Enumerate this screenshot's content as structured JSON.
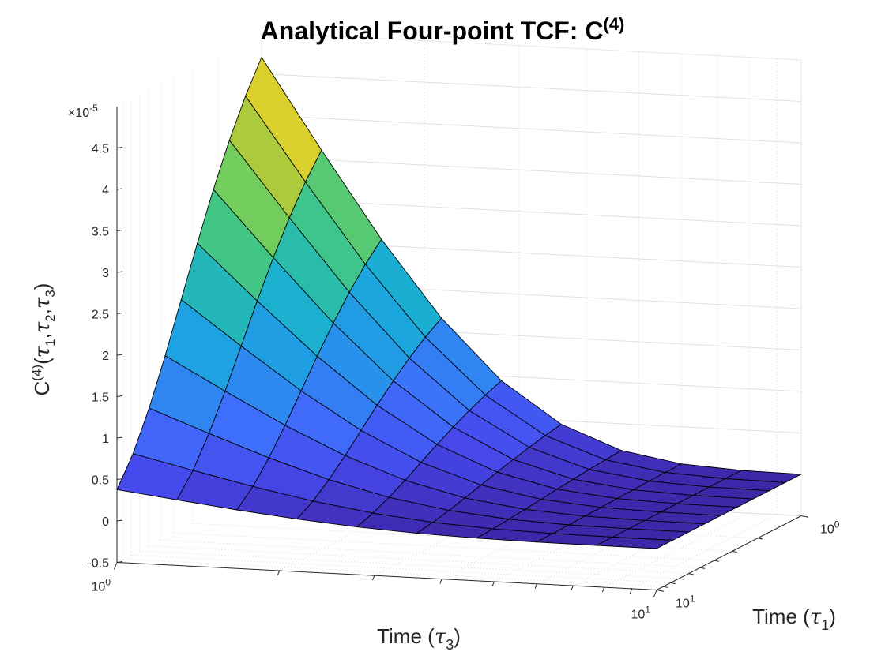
{
  "chart_data": {
    "type": "surface",
    "title": "Analytical Four-point TCF: C",
    "title_superscript": "(4)",
    "zlabel": {
      "base": "C",
      "sup": "(4)",
      "open": "(",
      "t1": "τ",
      "t1_sub": "1",
      "sep1": ",",
      "t2": "τ",
      "t2_sub": "2",
      "sep2": ",",
      "t3": "τ",
      "t3_sub": "3",
      "close": ")"
    },
    "xlabel": {
      "prefix": "Time (",
      "symbol": "τ",
      "sub": "3",
      "suffix": ")"
    },
    "ylabel": {
      "prefix": "Time (",
      "symbol": "τ",
      "sub": "1",
      "suffix": ")"
    },
    "z_exponent": {
      "prefix": "×10",
      "sup": "-5"
    },
    "z_ticks": [
      "-0.5",
      "0",
      "0.5",
      "1",
      "1.5",
      "2",
      "2.5",
      "3",
      "3.5",
      "4",
      "4.5"
    ],
    "z_tick_values": [
      -0.5,
      0,
      0.5,
      1,
      1.5,
      2,
      2.5,
      3,
      3.5,
      4,
      4.5
    ],
    "z_scale": 1e-05,
    "zlim": [
      -0.5,
      5.0
    ],
    "x_axis": {
      "scale": "log",
      "lim": [
        1,
        10
      ],
      "ticks": [
        {
          "base": "10",
          "sup": "0"
        },
        {
          "base": "10",
          "sup": "1"
        }
      ]
    },
    "y_axis": {
      "scale": "log",
      "lim": [
        1,
        10
      ],
      "ticks": [
        {
          "base": "10",
          "sup": "0"
        },
        {
          "base": "10",
          "sup": "1"
        }
      ]
    },
    "grid": true,
    "colormap": "parula",
    "tau3": [
      1,
      1.2915,
      1.6681,
      2.1544,
      2.7826,
      3.5938,
      4.6416,
      5.9948,
      7.7426,
      10
    ],
    "tau1": [
      1,
      1.2915,
      1.6681,
      2.1544,
      2.7826,
      3.5938,
      4.6416,
      5.9948,
      7.7426,
      10
    ],
    "z_peak": 4.7,
    "z_decay_tau3": 0.9,
    "z_decay_tau1": 0.28
  }
}
